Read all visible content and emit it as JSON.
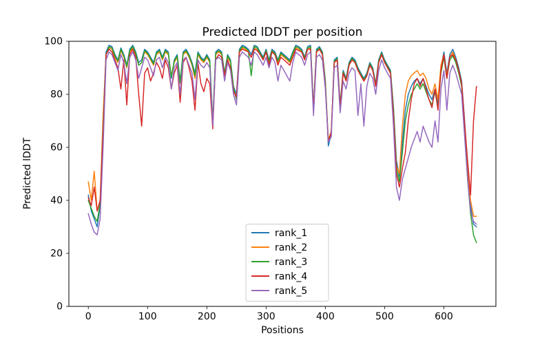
{
  "chart_data": {
    "type": "line",
    "title": "Predicted lDDT per position",
    "xlabel": "Positions",
    "ylabel": "Predicted lDDT",
    "xlim": [
      -32.8,
      687.8
    ],
    "ylim": [
      0,
      100
    ],
    "xticks": [
      0,
      100,
      200,
      300,
      400,
      500,
      600
    ],
    "yticks": [
      0,
      20,
      40,
      60,
      80,
      100
    ],
    "grid": false,
    "legend": {
      "position": "lower-center-inside",
      "border_color": "#cccccc",
      "background": "#ffffff"
    },
    "x_start": 0,
    "x_step": 5,
    "series": [
      {
        "name": "rank_1",
        "color": "#1f77b4",
        "values": [
          42,
          36,
          33,
          30,
          38,
          70,
          96,
          98.5,
          98,
          95,
          93,
          97.5,
          95,
          91,
          97,
          98.5,
          96,
          92,
          93,
          97,
          96,
          94,
          92,
          96,
          97,
          94,
          97,
          96,
          86,
          93,
          95,
          85,
          96,
          97,
          95,
          92,
          88,
          96,
          94,
          93,
          95,
          93,
          70,
          96,
          97,
          96,
          88,
          95,
          93,
          83,
          80,
          97,
          98.5,
          98,
          97,
          95,
          98.5,
          98,
          96,
          94,
          97,
          93,
          97,
          96,
          93,
          96,
          95,
          94,
          93,
          96,
          98.5,
          98,
          97,
          94,
          98,
          98.5,
          75,
          97,
          98,
          96,
          85,
          60.5,
          65,
          93,
          94,
          76,
          89,
          86,
          92,
          94,
          93,
          90,
          88,
          86,
          88,
          92,
          90,
          84,
          93,
          96,
          93,
          91,
          89,
          75,
          55,
          49,
          62,
          74,
          80,
          83,
          85,
          86,
          84,
          86,
          83,
          80,
          78,
          82,
          76,
          90,
          96,
          88,
          95,
          97,
          94,
          90,
          85,
          70,
          52,
          38,
          31,
          30
        ]
      },
      {
        "name": "rank_2",
        "color": "#ff7f0e",
        "values": [
          47,
          40,
          51,
          36,
          40,
          72,
          95,
          97.5,
          97,
          94,
          92,
          96.5,
          94,
          90,
          96,
          97.5,
          95,
          91,
          92,
          96,
          95,
          93,
          91,
          95,
          96,
          93,
          96,
          95,
          87,
          92,
          94,
          84,
          95,
          96,
          94,
          91,
          86,
          95,
          93,
          92,
          94,
          92,
          69,
          95,
          96,
          95,
          87,
          94,
          92,
          82,
          79,
          96,
          97.5,
          97,
          96,
          94,
          97.5,
          97,
          95,
          93,
          96,
          92,
          96,
          95,
          92,
          95,
          94,
          93,
          92,
          95,
          97.5,
          97,
          96,
          93,
          97,
          97.5,
          74,
          96,
          97,
          95,
          84,
          63,
          66,
          92,
          93,
          75,
          88,
          85,
          91,
          93,
          92,
          89,
          87,
          85,
          87,
          91,
          89,
          83,
          92,
          95,
          92,
          90,
          88,
          74,
          53,
          50,
          68,
          80,
          85,
          87,
          88,
          89,
          87,
          88,
          86,
          82,
          80,
          84,
          78,
          91,
          95,
          87,
          94,
          96,
          93,
          89,
          84,
          68,
          50,
          40,
          34,
          34
        ]
      },
      {
        "name": "rank_3",
        "color": "#2ca02c",
        "values": [
          40,
          37,
          34,
          32,
          39,
          68,
          95,
          98,
          97.5,
          94.5,
          92.5,
          97,
          94.5,
          90.5,
          96.5,
          98,
          95.5,
          91,
          92,
          96.5,
          95.5,
          93.5,
          91.5,
          95.5,
          96.5,
          93.5,
          96.5,
          95.5,
          86.5,
          92.5,
          94.5,
          84.5,
          95.5,
          96.5,
          94.5,
          91.5,
          87,
          95.5,
          93.5,
          92.5,
          94.5,
          92.5,
          68,
          95.5,
          96.5,
          95.5,
          87.5,
          94.5,
          92.5,
          82.5,
          78,
          96.5,
          98,
          97.5,
          96.5,
          87,
          98,
          97.5,
          95.5,
          93.5,
          96.5,
          92.5,
          96.5,
          95.5,
          92.5,
          95.5,
          94.5,
          93.5,
          92.5,
          95.5,
          98,
          97.5,
          96.5,
          93.5,
          97.5,
          98,
          74.5,
          96.5,
          97.5,
          95.5,
          84.5,
          62,
          65.5,
          92.5,
          93.5,
          75.5,
          88.5,
          85.5,
          91.5,
          93.5,
          92.5,
          89.5,
          87.5,
          85.5,
          87.5,
          91.5,
          89.5,
          83.5,
          92.5,
          95.5,
          92.5,
          90.5,
          88.5,
          74.5,
          52,
          47,
          58,
          70,
          76,
          80,
          82,
          84,
          82,
          84,
          81,
          78,
          76,
          81,
          75,
          88,
          94,
          86,
          93,
          94.5,
          92,
          88,
          83,
          66,
          48,
          35,
          27,
          24
        ]
      },
      {
        "name": "rank_4",
        "color": "#d62728",
        "values": [
          41,
          38,
          45,
          36,
          40,
          66,
          95,
          97,
          96,
          93,
          90,
          82,
          93,
          76,
          95,
          97,
          94,
          80,
          68,
          88,
          90,
          85,
          88,
          92,
          90,
          86,
          93,
          90,
          82,
          88,
          91,
          77,
          92,
          94,
          90,
          85,
          74,
          92,
          84,
          81,
          86,
          84,
          67,
          93,
          95,
          94,
          87,
          93,
          90,
          81,
          79,
          96,
          97,
          96.5,
          96,
          94,
          97,
          96.5,
          95,
          93,
          96,
          91,
          96,
          95,
          91,
          94,
          93,
          92,
          91,
          94,
          97,
          96.5,
          96,
          93,
          97,
          97,
          74,
          96,
          97,
          95,
          83,
          62,
          66,
          92,
          93,
          75,
          88,
          85,
          91,
          93,
          92,
          89,
          87,
          85,
          87,
          91,
          89,
          83,
          92,
          95,
          92,
          90,
          88,
          72,
          50,
          45,
          52,
          58,
          70,
          78,
          84,
          86,
          83,
          86,
          82,
          78,
          75,
          82,
          74,
          89,
          95,
          86,
          94,
          95,
          93,
          89,
          84,
          69,
          55,
          42,
          70,
          83
        ]
      },
      {
        "name": "rank_5",
        "color": "#9467bd",
        "values": [
          35,
          31,
          28,
          27,
          33,
          60,
          93,
          96,
          95,
          92,
          89,
          95,
          92,
          84,
          94,
          96,
          93,
          86,
          90,
          94,
          93,
          90,
          87,
          93,
          94,
          90,
          94,
          92,
          82,
          90,
          92,
          80,
          93,
          94,
          91,
          88,
          78,
          93,
          91,
          90,
          92,
          90,
          68,
          93,
          94,
          93,
          85,
          92,
          89,
          80,
          76,
          94,
          96,
          95,
          94,
          91,
          96,
          95,
          93,
          91,
          94,
          90,
          94,
          92,
          85,
          91,
          89,
          87,
          85,
          92,
          96,
          95,
          94,
          91,
          95,
          96,
          72,
          94,
          95,
          93,
          82,
          62,
          64,
          90,
          91,
          73,
          85,
          82,
          88,
          90,
          89,
          72,
          84,
          68,
          83,
          88,
          86,
          80,
          89,
          93,
          90,
          88,
          86,
          68,
          45,
          40,
          48,
          52,
          56,
          60,
          63,
          66,
          62,
          68,
          65,
          62,
          60,
          70,
          62,
          82,
          89,
          74,
          88,
          91,
          88,
          84,
          80,
          64,
          48,
          36,
          32,
          31
        ]
      }
    ]
  }
}
